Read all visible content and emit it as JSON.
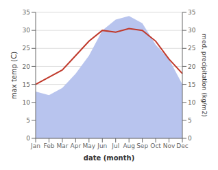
{
  "chart_data": {
    "type": "line",
    "xlabel": "date (month)",
    "ylabel": "max temp (C)",
    "y2label": "med. precipitation (kg/m2)",
    "categories": [
      "Jan",
      "Feb",
      "Mar",
      "Apr",
      "May",
      "Jun",
      "Jul",
      "Aug",
      "Sep",
      "Oct",
      "Nov",
      "Dec"
    ],
    "series": [
      {
        "type": "area",
        "color": "#b8c4ee",
        "axis": "y2",
        "values": [
          13,
          12,
          14,
          18,
          23,
          30,
          33,
          34,
          32,
          26,
          22,
          15
        ]
      },
      {
        "type": "line",
        "color": "#c0392b",
        "values": [
          15,
          17,
          19,
          23,
          27,
          30,
          29.5,
          30.5,
          30,
          27,
          22,
          18
        ]
      }
    ],
    "ylim": [
      0,
      35
    ],
    "yticks": [
      0,
      5,
      10,
      15,
      20,
      25,
      30,
      35
    ],
    "y2lim": [
      0,
      35
    ],
    "y2ticks": [
      0,
      5,
      10,
      15,
      20,
      25,
      30,
      35
    ],
    "grid": true
  }
}
